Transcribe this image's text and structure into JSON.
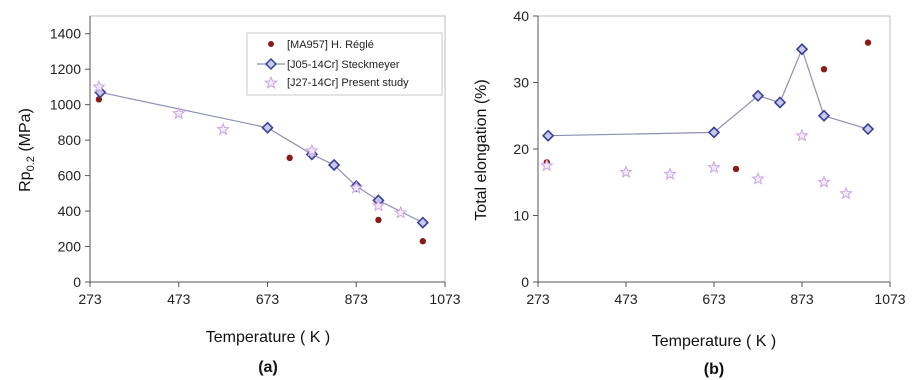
{
  "chart_data": [
    {
      "type": "scatter",
      "panel_label": "(a)",
      "xlabel": "Temperature ( K )",
      "ylabel": "Rp0.2 (MPa)",
      "ylabel_main": "Rp",
      "ylabel_sub": "0.2",
      "ylabel_unit": " (MPa)",
      "xlim": [
        273,
        1073
      ],
      "ylim": [
        0,
        1500
      ],
      "xticks": [
        273,
        473,
        673,
        873,
        1073
      ],
      "yticks": [
        0,
        200,
        400,
        600,
        800,
        1000,
        1200,
        1400
      ],
      "legend_position": "top-right",
      "series": [
        {
          "name": "[MA957] H. Réglé",
          "marker": "dot",
          "color": "#8b1a1a",
          "line": false,
          "x": [
            293,
            723,
            923,
            1023
          ],
          "y": [
            1030,
            700,
            350,
            230
          ]
        },
        {
          "name": "[J05-14Cr] Steckmeyer",
          "marker": "diamond",
          "color": "#3b3f9a",
          "line": true,
          "x": [
            296,
            673,
            773,
            823,
            873,
            923,
            1023
          ],
          "y": [
            1070,
            870,
            720,
            660,
            540,
            460,
            335
          ]
        },
        {
          "name": "[J27-14Cr] Present study",
          "marker": "star",
          "color": "#c9a6e0",
          "line": false,
          "x": [
            293,
            473,
            573,
            773,
            873,
            923,
            973
          ],
          "y": [
            1100,
            950,
            860,
            740,
            530,
            430,
            390
          ]
        }
      ]
    },
    {
      "type": "scatter",
      "panel_label": "(b)",
      "xlabel": "Temperature ( K )",
      "ylabel": "Total elongation (%)",
      "xlim": [
        273,
        1073
      ],
      "ylim": [
        0,
        40
      ],
      "xticks": [
        273,
        473,
        673,
        873,
        1073
      ],
      "yticks": [
        0,
        10,
        20,
        30,
        40
      ],
      "series": [
        {
          "name": "[MA957] H. Réglé",
          "marker": "dot",
          "color": "#8b1a1a",
          "line": false,
          "x": [
            293,
            723,
            923,
            1023
          ],
          "y": [
            18,
            17,
            32,
            36
          ]
        },
        {
          "name": "[J05-14Cr] Steckmeyer",
          "marker": "diamond",
          "color": "#3b3f9a",
          "line": true,
          "x": [
            296,
            673,
            773,
            823,
            873,
            923,
            1023
          ],
          "y": [
            22,
            22.5,
            28,
            27,
            35,
            25,
            23
          ]
        },
        {
          "name": "[J27-14Cr] Present study",
          "marker": "star",
          "color": "#c9a6e0",
          "line": false,
          "x": [
            293,
            473,
            573,
            673,
            773,
            873,
            923,
            973
          ],
          "y": [
            17.5,
            16.5,
            16.2,
            17.2,
            15.5,
            22,
            15,
            13.3
          ]
        }
      ]
    }
  ]
}
